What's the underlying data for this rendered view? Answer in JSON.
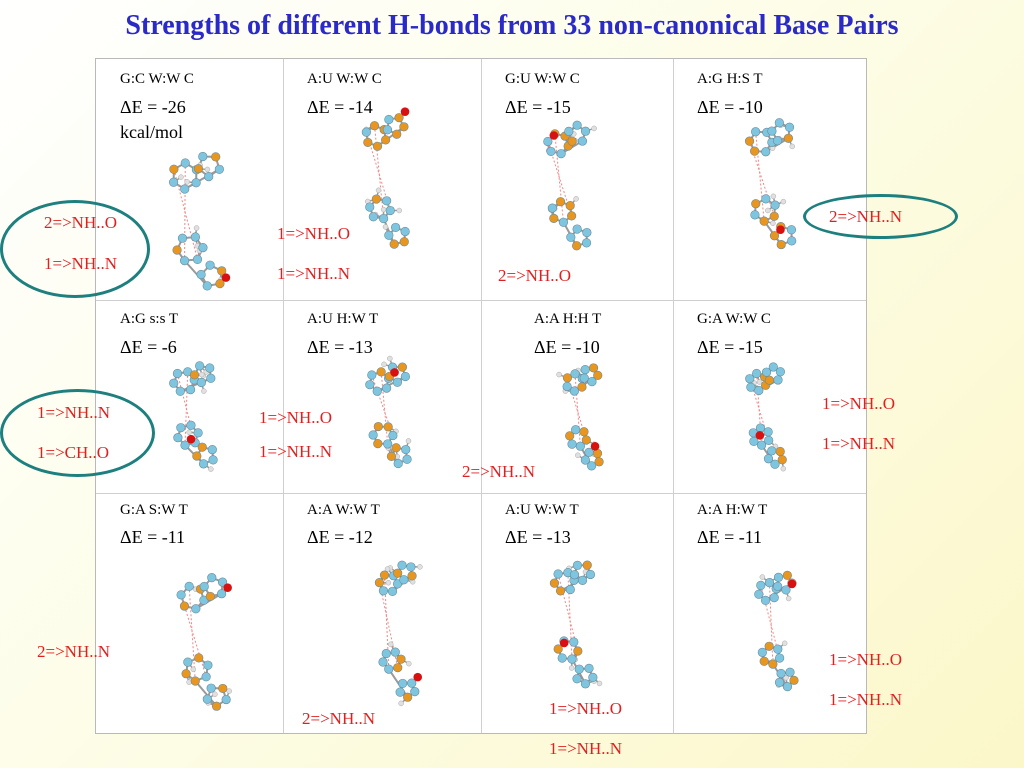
{
  "title": "Strengths of different H-bonds from 33 non-canonical Base Pairs",
  "cells": [
    {
      "label": "G:C W:W C",
      "energy": "ΔE = -26",
      "unit": "kcal/mol",
      "bonds": [
        "2=>NH..O",
        "1=>NH..N"
      ]
    },
    {
      "label": "A:U W:W C",
      "energy": "ΔE = -14",
      "bonds": [
        "1=>NH..O",
        "1=>NH..N"
      ]
    },
    {
      "label": "G:U W:W C",
      "energy": "ΔE = -15",
      "bonds": [
        "2=>NH..O"
      ]
    },
    {
      "label": "A:G H:S T",
      "energy": "ΔE = -10",
      "bonds": [
        "2=>NH..N"
      ]
    },
    {
      "label": "A:G s:s T",
      "energy": "ΔE = -6",
      "bonds": [
        "1=>NH..N",
        "1=>CH..O"
      ]
    },
    {
      "label": "A:U H:W T",
      "energy": "ΔE = -13",
      "bonds": [
        "1=>NH..O",
        "1=>NH..N"
      ]
    },
    {
      "label": "A:A H:H T",
      "energy": "ΔE = -10",
      "bonds": [
        "2=>NH..N"
      ]
    },
    {
      "label": "G:A W:W C",
      "energy": "ΔE = -15",
      "bonds": [
        "1=>NH..O",
        "1=>NH..N"
      ]
    },
    {
      "label": "G:A S:W T",
      "energy": "ΔE = -11",
      "bonds": [
        "2=>NH..N"
      ]
    },
    {
      "label": "A:A W:W T",
      "energy": "ΔE = -12",
      "bonds": [
        "2=>NH..N"
      ]
    },
    {
      "label": "A:U W:W T",
      "energy": "ΔE = -13",
      "bonds": [
        "1=>NH..O",
        "1=>NH..N"
      ]
    },
    {
      "label": "A:A H:W T",
      "energy": "ΔE = -11",
      "bonds": [
        "1=>NH..O",
        "1=>NH..N"
      ]
    }
  ],
  "colors": {
    "title": "#2a2ac8",
    "hbond_text": "#e02020",
    "ring": "#1e7f7f",
    "carbon": "#7ec6e0",
    "nitrogen": "#e8961e",
    "oxygen": "#d81010",
    "hydrogen": "#e0e0e0"
  }
}
